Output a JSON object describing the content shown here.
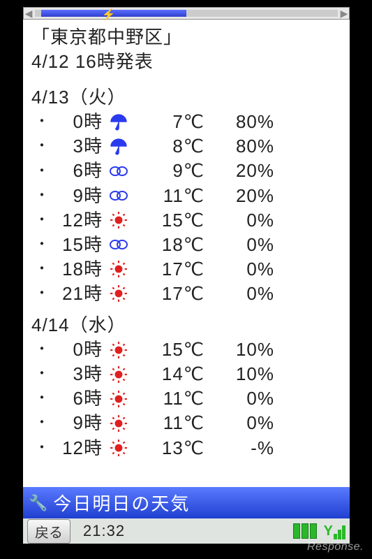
{
  "progress": {
    "fill_percent": 48,
    "marker_percent": 22
  },
  "location": "「東京都中野区」",
  "published": "4/12 16時発表",
  "days": [
    {
      "header": "4/13（火）",
      "rows": [
        {
          "hour": "0時",
          "icon": "umbrella",
          "temp": "7℃",
          "prob": "80%"
        },
        {
          "hour": "3時",
          "icon": "umbrella",
          "temp": "8℃",
          "prob": "80%"
        },
        {
          "hour": "6時",
          "icon": "cloud",
          "temp": "9℃",
          "prob": "20%"
        },
        {
          "hour": "9時",
          "icon": "cloud",
          "temp": "11℃",
          "prob": "20%"
        },
        {
          "hour": "12時",
          "icon": "sun",
          "temp": "15℃",
          "prob": "0%"
        },
        {
          "hour": "15時",
          "icon": "cloud",
          "temp": "18℃",
          "prob": "0%"
        },
        {
          "hour": "18時",
          "icon": "sun",
          "temp": "17℃",
          "prob": "0%"
        },
        {
          "hour": "21時",
          "icon": "sun",
          "temp": "17℃",
          "prob": "0%"
        }
      ]
    },
    {
      "header": "4/14（水）",
      "rows": [
        {
          "hour": "0時",
          "icon": "sun",
          "temp": "15℃",
          "prob": "10%"
        },
        {
          "hour": "3時",
          "icon": "sun",
          "temp": "14℃",
          "prob": "10%"
        },
        {
          "hour": "6時",
          "icon": "sun",
          "temp": "11℃",
          "prob": "0%"
        },
        {
          "hour": "9時",
          "icon": "sun",
          "temp": "11℃",
          "prob": "0%"
        },
        {
          "hour": "12時",
          "icon": "sun",
          "temp": "13℃",
          "prob": "-%"
        }
      ]
    }
  ],
  "footer": {
    "title": "今日明日の天気",
    "back_label": "戻る",
    "clock": "21:32"
  },
  "colors": {
    "umbrella": "#2a3aee",
    "cloud": "#2a3aee",
    "sun": "#e02020",
    "progress_fill": "#4a5aee",
    "footer_bg": "#3a5ae0",
    "battery": "#2ab82a"
  },
  "watermark": "Response."
}
